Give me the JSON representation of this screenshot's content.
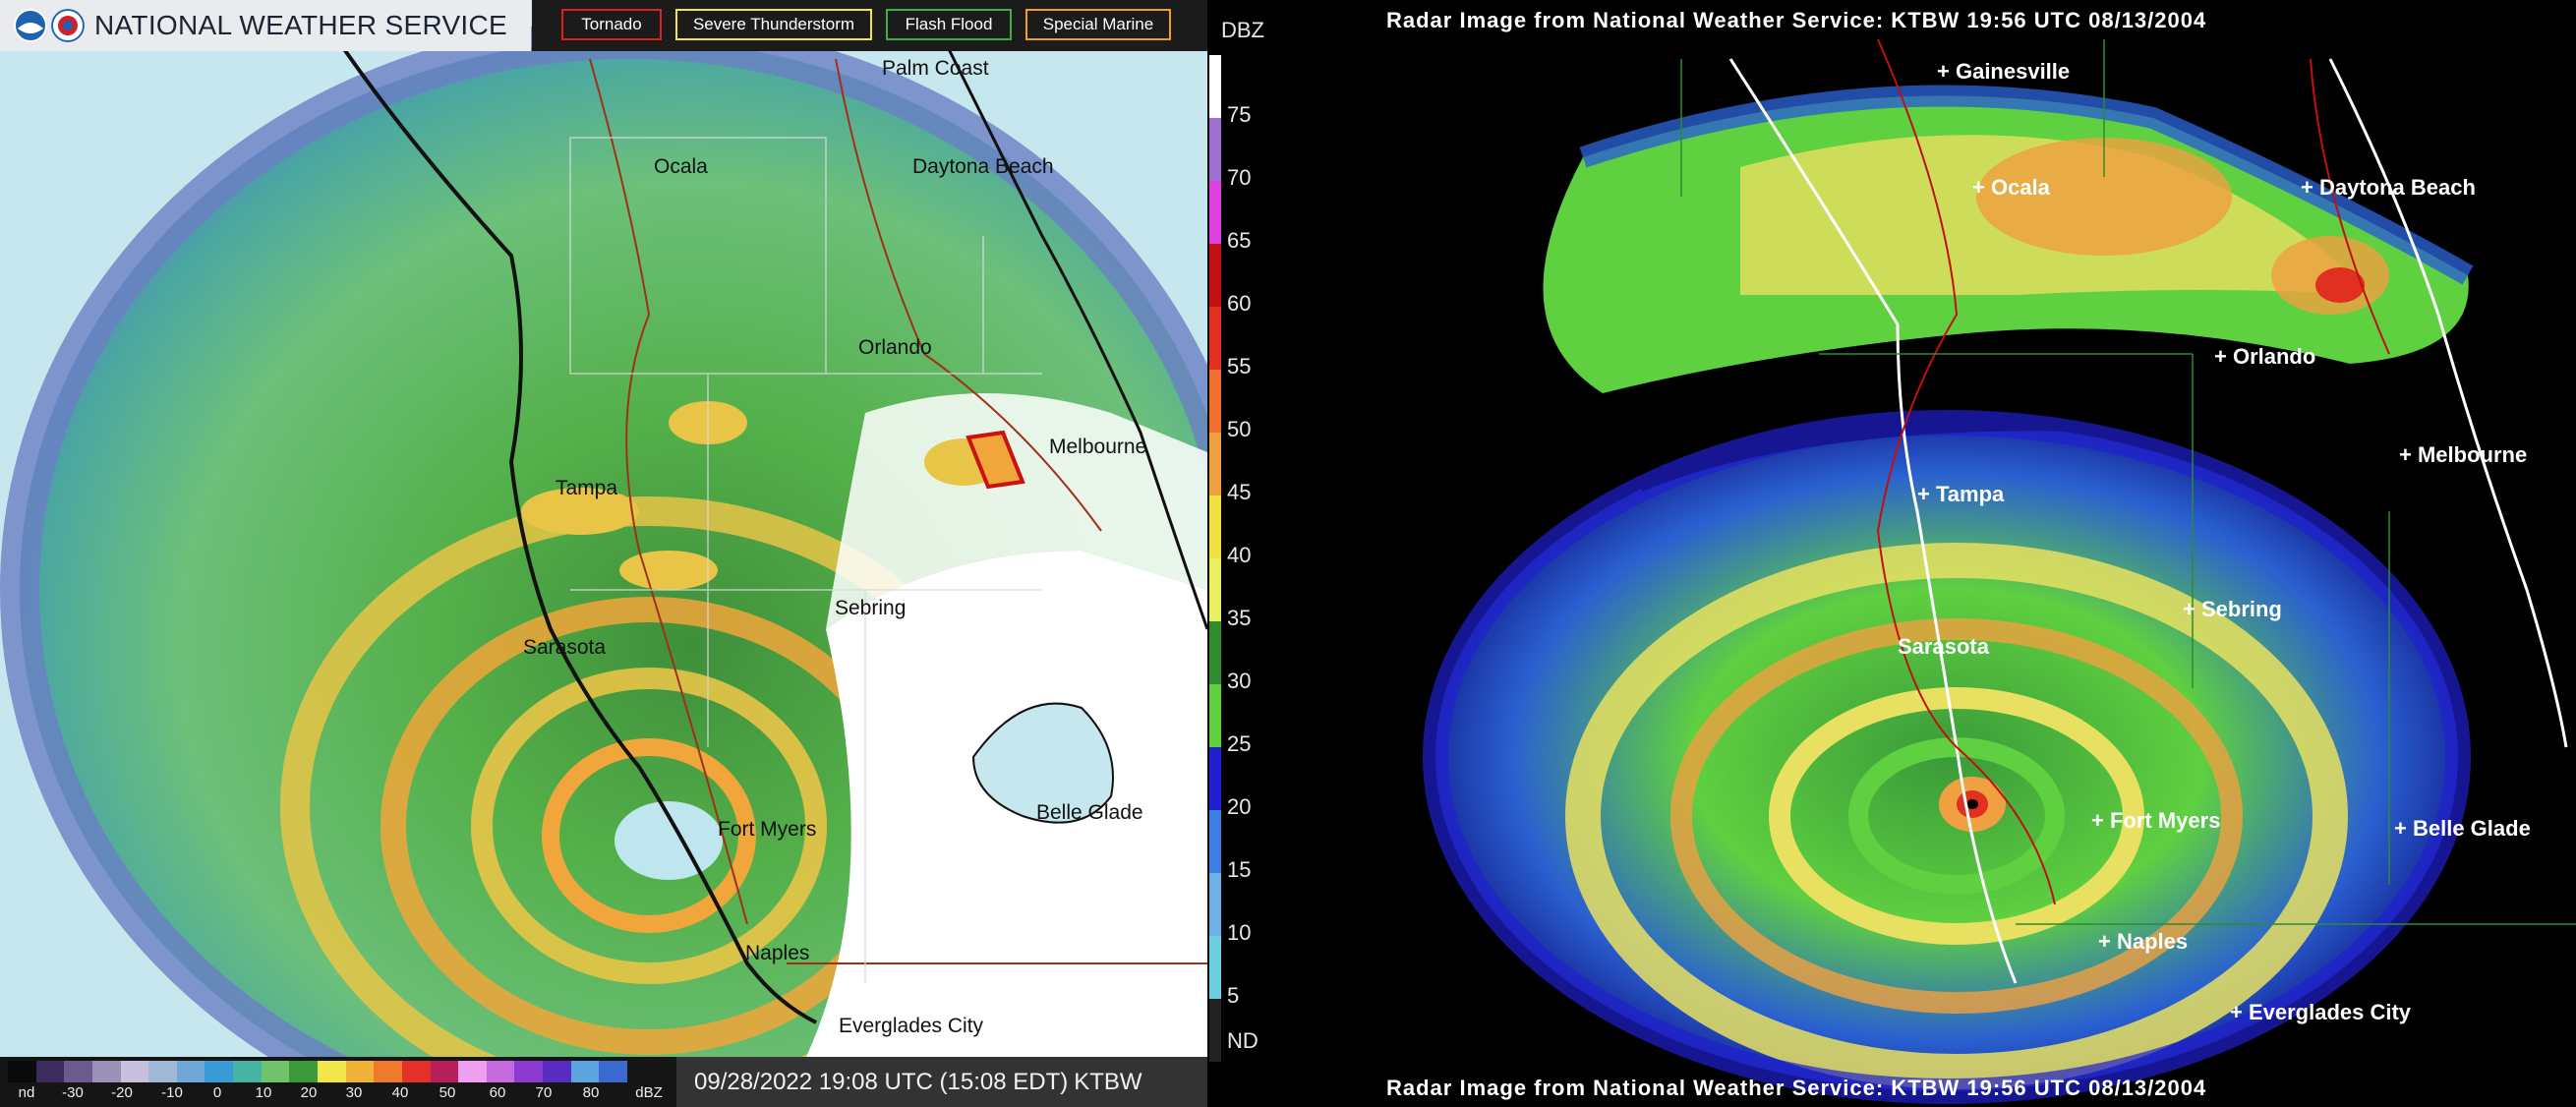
{
  "left": {
    "header_title": "NATIONAL WEATHER SERVICE",
    "legend": [
      {
        "label": "Tornado",
        "color": "#e0201f"
      },
      {
        "label": "Severe Thunderstorm",
        "color": "#f3e34a"
      },
      {
        "label": "Flash Flood",
        "color": "#3fae49"
      },
      {
        "label": "Special Marine",
        "color": "#f39c2a"
      }
    ],
    "places": {
      "palm_coast": "Palm Coast",
      "ocala": "Ocala",
      "daytona": "Daytona Beach",
      "orlando": "Orlando",
      "melbourne": "Melbourne",
      "tampa": "Tampa",
      "sebring": "Sebring",
      "sarasota": "Sarasota",
      "belle_glade": "Belle Glade",
      "fort_myers": "Fort Myers",
      "naples": "Naples",
      "everglades": "Everglades City"
    },
    "scale": {
      "nd": "nd",
      "ticks": [
        "-30",
        "-20",
        "-10",
        "0",
        "10",
        "20",
        "30",
        "40",
        "50",
        "60",
        "70",
        "80"
      ],
      "unit": "dBZ",
      "colors": [
        "#0a0a0a",
        "#3b2b5e",
        "#6a5a8e",
        "#9a90b8",
        "#c8c0dc",
        "#9fb8d8",
        "#6fa8d8",
        "#3a9ad8",
        "#46b3a4",
        "#6fc36b",
        "#3a9a3a",
        "#f2e64a",
        "#f2b23a",
        "#ee7a2a",
        "#e5302a",
        "#b81f5a",
        "#ef9ff0",
        "#c76adf",
        "#8d3ad0",
        "#5a2bc0",
        "#5aa5e0",
        "#3a6ad0"
      ]
    },
    "timestamp": "09/28/2022 19:08 UTC (15:08 EDT)",
    "station": "KTBW"
  },
  "dbz_scale": {
    "title": "DBZ",
    "ticks": [
      "75",
      "70",
      "65",
      "60",
      "55",
      "50",
      "45",
      "40",
      "35",
      "30",
      "25",
      "20",
      "15",
      "10",
      "5",
      "ND"
    ],
    "colors": [
      "#ffffff",
      "#a070d0",
      "#e040e0",
      "#c01010",
      "#e03020",
      "#f07030",
      "#f0a040",
      "#f0e040",
      "#e8f060",
      "#2e8b2e",
      "#5fd040",
      "#2020d0",
      "#3a80e0",
      "#70b0e8",
      "#6ad0e0",
      "#222222"
    ]
  },
  "right": {
    "title_top": "Radar Image from National Weather Service: KTBW   19:56 UTC  08/13/2004",
    "title_bottom": "Radar Image from National Weather Service: KTBW   19:56 UTC  08/13/2004",
    "places": {
      "gainesville": "Gainesville",
      "ocala": "Ocala",
      "daytona": "Daytona Beach",
      "orlando": "Orlando",
      "melbourne": "Melbourne",
      "tampa": "Tampa",
      "sebring": "Sebring",
      "sarasota": "Sarasota",
      "fort_myers": "Fort Myers",
      "belle_glade": "Belle Glade",
      "naples": "Naples",
      "everglades": "Everglades City"
    }
  }
}
